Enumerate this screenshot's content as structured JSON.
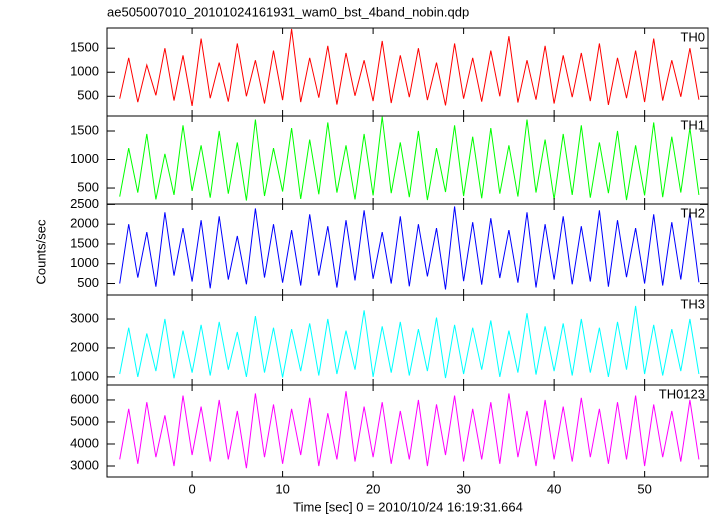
{
  "chart_data": [
    {
      "type": "line",
      "title": "ae505007010_20101024161931_wam0_bst_4band_nobin.qdp",
      "label": "TH0",
      "color": "#ff0000",
      "xlim": [
        -9.4,
        57
      ],
      "ylim": [
        90,
        1920
      ],
      "yticks": [
        500,
        1000,
        1500
      ],
      "x": [
        -8,
        -7,
        -6,
        -5,
        -4,
        -3,
        -2,
        -1,
        0,
        1,
        2,
        3,
        4,
        5,
        6,
        7,
        8,
        9,
        10,
        11,
        12,
        13,
        14,
        15,
        16,
        17,
        18,
        19,
        20,
        21,
        22,
        23,
        24,
        25,
        26,
        27,
        28,
        29,
        30,
        31,
        32,
        33,
        34,
        35,
        36,
        37,
        38,
        39,
        40,
        41,
        42,
        43,
        44,
        45,
        46,
        47,
        48,
        49,
        50,
        51,
        52,
        53,
        54,
        55,
        56
      ],
      "values": [
        450,
        1300,
        380,
        1150,
        520,
        1500,
        410,
        1350,
        300,
        1700,
        460,
        1200,
        390,
        1600,
        500,
        1250,
        350,
        1450,
        420,
        1900,
        380,
        1300,
        470,
        1550,
        330,
        1400,
        510,
        1250,
        400,
        1650,
        360,
        1350,
        480,
        1500,
        420,
        1200,
        310,
        1600,
        450,
        1300,
        390,
        1450,
        500,
        1750,
        370,
        1250,
        430,
        1550,
        350,
        1350,
        480,
        1400,
        400,
        1600,
        320,
        1300,
        460,
        1450,
        380,
        1700,
        410,
        1250,
        490,
        1500,
        430
      ]
    },
    {
      "type": "line",
      "label": "TH1",
      "color": "#00ff00",
      "xlim": [
        -9.4,
        57
      ],
      "ylim": [
        220,
        1763
      ],
      "yticks": [
        500,
        1000,
        1500
      ],
      "x": [
        -8,
        -7,
        -6,
        -5,
        -4,
        -3,
        -2,
        -1,
        0,
        1,
        2,
        3,
        4,
        5,
        6,
        7,
        8,
        9,
        10,
        11,
        12,
        13,
        14,
        15,
        16,
        17,
        18,
        19,
        20,
        21,
        22,
        23,
        24,
        25,
        26,
        27,
        28,
        29,
        30,
        31,
        32,
        33,
        34,
        35,
        36,
        37,
        38,
        39,
        40,
        41,
        42,
        43,
        44,
        45,
        46,
        47,
        48,
        49,
        50,
        51,
        52,
        53,
        54,
        55,
        56
      ],
      "values": [
        350,
        1200,
        420,
        1450,
        300,
        1100,
        380,
        1600,
        450,
        1250,
        330,
        1500,
        400,
        1300,
        280,
        1700,
        360,
        1200,
        440,
        1550,
        310,
        1350,
        390,
        1650,
        420,
        1250,
        300,
        1450,
        370,
        1750,
        410,
        1300,
        340,
        1500,
        290,
        1200,
        430,
        1600,
        360,
        1400,
        320,
        1550,
        400,
        1250,
        350,
        1700,
        420,
        1350,
        300,
        1450,
        380,
        1600,
        330,
        1300,
        410,
        1500,
        290,
        1250,
        370,
        1650,
        340,
        1400,
        420,
        1550,
        380
      ]
    },
    {
      "type": "line",
      "label": "TH2",
      "color": "#0000ff",
      "ylabel": "Counts/sec",
      "xlim": [
        -9.4,
        57
      ],
      "ylim": [
        210,
        2510
      ],
      "yticks": [
        500,
        1000,
        1500,
        2000,
        2500
      ],
      "x": [
        -8,
        -7,
        -6,
        -5,
        -4,
        -3,
        -2,
        -1,
        0,
        1,
        2,
        3,
        4,
        5,
        6,
        7,
        8,
        9,
        10,
        11,
        12,
        13,
        14,
        15,
        16,
        17,
        18,
        19,
        20,
        21,
        22,
        23,
        24,
        25,
        26,
        27,
        28,
        29,
        30,
        31,
        32,
        33,
        34,
        35,
        36,
        37,
        38,
        39,
        40,
        41,
        42,
        43,
        44,
        45,
        46,
        47,
        48,
        49,
        50,
        51,
        52,
        53,
        54,
        55,
        56
      ],
      "values": [
        500,
        2000,
        650,
        1800,
        420,
        2300,
        700,
        1900,
        550,
        2100,
        380,
        2200,
        600,
        1700,
        480,
        2400,
        650,
        2000,
        520,
        1850,
        450,
        2250,
        700,
        1950,
        400,
        2100,
        580,
        2350,
        620,
        1800,
        500,
        2200,
        430,
        2000,
        680,
        1900,
        350,
        2450,
        560,
        2050,
        470,
        2150,
        640,
        1850,
        520,
        2300,
        400,
        2000,
        600,
        2200,
        480,
        1950,
        550,
        2350,
        420,
        2100,
        660,
        1900,
        500,
        2250,
        450,
        2050,
        600,
        2300,
        530
      ]
    },
    {
      "type": "line",
      "label": "TH3",
      "color": "#00ffff",
      "xlim": [
        -9.4,
        57
      ],
      "ylim": [
        720,
        3830
      ],
      "yticks": [
        1000,
        2000,
        3000
      ],
      "x": [
        -8,
        -7,
        -6,
        -5,
        -4,
        -3,
        -2,
        -1,
        0,
        1,
        2,
        3,
        4,
        5,
        6,
        7,
        8,
        9,
        10,
        11,
        12,
        13,
        14,
        15,
        16,
        17,
        18,
        19,
        20,
        21,
        22,
        23,
        24,
        25,
        26,
        27,
        28,
        29,
        30,
        31,
        32,
        33,
        34,
        35,
        36,
        37,
        38,
        39,
        40,
        41,
        42,
        43,
        44,
        45,
        46,
        47,
        48,
        49,
        50,
        51,
        52,
        53,
        54,
        55,
        56
      ],
      "values": [
        1100,
        2700,
        1000,
        2500,
        1200,
        3000,
        950,
        2600,
        1150,
        2800,
        1050,
        2900,
        1250,
        2550,
        1000,
        3100,
        1150,
        2700,
        980,
        2650,
        1200,
        2850,
        1050,
        3000,
        1100,
        2600,
        1250,
        3300,
        1000,
        2750,
        1150,
        2900,
        1050,
        2650,
        1200,
        3050,
        960,
        2800,
        1100,
        2700,
        1250,
        2950,
        1000,
        2600,
        1150,
        3200,
        1080,
        2750,
        1200,
        2850,
        1050,
        3000,
        1150,
        2700,
        1000,
        2900,
        1250,
        3450,
        1100,
        2800,
        1050,
        2650,
        1200,
        3000,
        1100
      ]
    },
    {
      "type": "line",
      "label": "TH0123",
      "color": "#ff00ff",
      "xlabel": "Time [sec] 0 = 2010/10/24 16:19:31.664",
      "xlim": [
        -9.4,
        57
      ],
      "xticks": [
        0,
        10,
        20,
        30,
        40,
        50
      ],
      "ylim": [
        2500,
        6680
      ],
      "yticks": [
        3000,
        4000,
        5000,
        6000
      ],
      "x": [
        -8,
        -7,
        -6,
        -5,
        -4,
        -3,
        -2,
        -1,
        0,
        1,
        2,
        3,
        4,
        5,
        6,
        7,
        8,
        9,
        10,
        11,
        12,
        13,
        14,
        15,
        16,
        17,
        18,
        19,
        20,
        21,
        22,
        23,
        24,
        25,
        26,
        27,
        28,
        29,
        30,
        31,
        32,
        33,
        34,
        35,
        36,
        37,
        38,
        39,
        40,
        41,
        42,
        43,
        44,
        45,
        46,
        47,
        48,
        49,
        50,
        51,
        52,
        53,
        54,
        55,
        56
      ],
      "values": [
        3300,
        5600,
        3100,
        5900,
        3400,
        5300,
        3000,
        6200,
        3500,
        5700,
        3200,
        6000,
        3300,
        5500,
        2900,
        6300,
        3400,
        5800,
        3100,
        5600,
        3500,
        6100,
        3000,
        5400,
        3300,
        6400,
        3200,
        5700,
        3400,
        5900,
        3100,
        5500,
        3300,
        6000,
        3000,
        5800,
        3500,
        6200,
        3200,
        5600,
        3300,
        5900,
        3100,
        6300,
        3400,
        5500,
        3000,
        6000,
        3300,
        5700,
        3200,
        6100,
        3400,
        5600,
        3100,
        5900,
        3300,
        6200,
        3000,
        5800,
        3400,
        5500,
        3200,
        6000,
        3300
      ]
    }
  ]
}
